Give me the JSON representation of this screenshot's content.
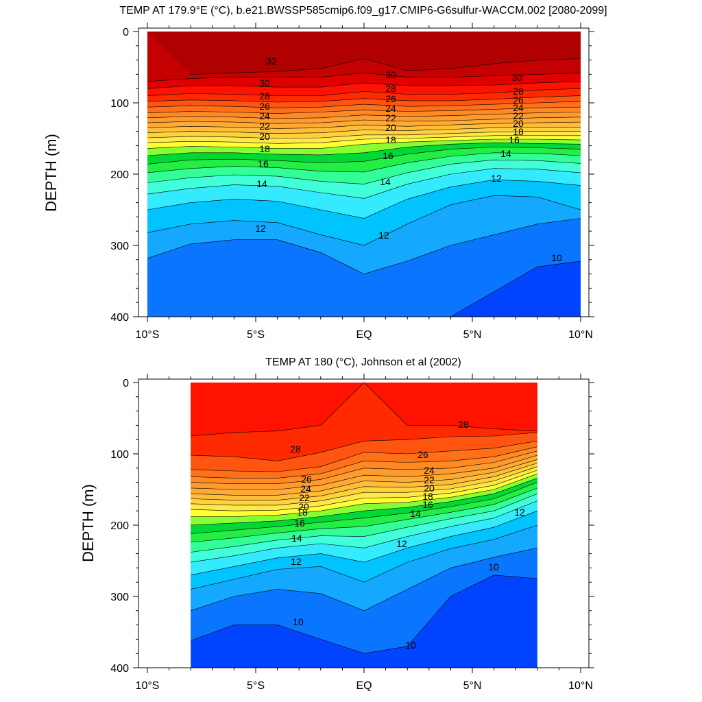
{
  "chart_data": [
    {
      "type": "contour",
      "title": "TEMP AT 179.9°E (°C), b.e21.BWSSP585cmip6.f09_g17.CMIP6-G6sulfur-WACCM.002 [2080-2099]",
      "ylabel": "DEPTH (m)",
      "xlabel": "",
      "xlim": [
        -10,
        10
      ],
      "ylim": [
        400,
        0
      ],
      "x_ticks": [
        -10,
        -5,
        0,
        5,
        10
      ],
      "x_tick_labels": [
        "10°S",
        "5°S",
        "EQ",
        "5°N",
        "10°N"
      ],
      "y_ticks": [
        0,
        100,
        200,
        300,
        400
      ],
      "y_tick_labels": [
        "0",
        "100",
        "200",
        "300",
        "400"
      ],
      "contour_levels": [
        10,
        11,
        12,
        13,
        14,
        15,
        16,
        17,
        18,
        19,
        20,
        21,
        22,
        23,
        24,
        25,
        26,
        27,
        28,
        29,
        30,
        31,
        32
      ],
      "isotherm_depths": {
        "x": [
          -10,
          -8,
          -6,
          -4,
          -2,
          0,
          2,
          4,
          6,
          8,
          10
        ],
        "levels": [
          {
            "t": 32,
            "d": [
              null,
              60,
              58,
              56,
              52,
              38,
              55,
              52,
              45,
              40,
              38
            ]
          },
          {
            "t": 31,
            "d": [
              70,
              66,
              64,
              64,
              64,
              58,
              64,
              64,
              62,
              60,
              58
            ]
          },
          {
            "t": 30,
            "d": [
              80,
              76,
              76,
              78,
              78,
              72,
              76,
              76,
              75,
              72,
              70
            ]
          },
          {
            "t": 29,
            "d": [
              90,
              87,
              88,
              90,
              90,
              84,
              88,
              88,
              86,
              82,
              80
            ]
          },
          {
            "t": 28,
            "d": [
              98,
              96,
              97,
              99,
              98,
              94,
              97,
              97,
              95,
              92,
              90
            ]
          },
          {
            "t": 27,
            "d": [
              106,
              104,
              105,
              107,
              106,
              102,
              105,
              104,
              102,
              100,
              98
            ]
          },
          {
            "t": 26,
            "d": [
              114,
              112,
              113,
              115,
              113,
              110,
              112,
              111,
              109,
              107,
              106
            ]
          },
          {
            "t": 25,
            "d": [
              121,
              119,
              120,
              122,
              121,
              117,
              119,
              118,
              116,
              114,
              113
            ]
          },
          {
            "t": 24,
            "d": [
              128,
              126,
              127,
              129,
              128,
              124,
              126,
              125,
              123,
              121,
              120
            ]
          },
          {
            "t": 23,
            "d": [
              135,
              133,
              134,
              136,
              135,
              131,
              133,
              131,
              129,
              128,
              127
            ]
          },
          {
            "t": 22,
            "d": [
              142,
              140,
              141,
              143,
              142,
              138,
              139,
              137,
              135,
              134,
              134
            ]
          },
          {
            "t": 21,
            "d": [
              149,
              147,
              148,
              150,
              149,
              145,
              145,
              143,
              141,
              140,
              140
            ]
          },
          {
            "t": 20,
            "d": [
              156,
              154,
              155,
              157,
              156,
              151,
              150,
              148,
              146,
              146,
              146
            ]
          },
          {
            "t": 19,
            "d": [
              164,
              161,
              162,
              164,
              164,
              158,
              155,
              153,
              151,
              151,
              152
            ]
          },
          {
            "t": 18,
            "d": [
              174,
              170,
              170,
              172,
              173,
              170,
              162,
              158,
              156,
              157,
              158
            ]
          },
          {
            "t": 17,
            "d": [
              186,
              180,
              179,
              181,
              184,
              182,
              172,
              165,
              162,
              163,
              165
            ]
          },
          {
            "t": 16,
            "d": [
              198,
              192,
              189,
              191,
              196,
              197,
              184,
              175,
              170,
              171,
              174
            ]
          },
          {
            "t": 15,
            "d": [
              212,
              205,
              201,
              203,
              210,
              214,
              198,
              186,
              180,
              181,
              185
            ]
          },
          {
            "t": 14,
            "d": [
              228,
              220,
              215,
              217,
              226,
              234,
              214,
              200,
              192,
              193,
              198
            ]
          },
          {
            "t": 13,
            "d": [
              250,
              240,
              235,
              238,
              250,
              262,
              235,
              218,
              208,
              210,
              216
            ]
          },
          {
            "t": 12,
            "d": [
              282,
              270,
              265,
              268,
              285,
              300,
              270,
              243,
              230,
              232,
              250
            ]
          },
          {
            "t": 11,
            "d": [
              318,
              298,
              292,
              292,
              310,
              340,
              322,
              300,
              285,
              270,
              262
            ]
          },
          {
            "t": 10,
            "d": [
              null,
              null,
              null,
              null,
              null,
              null,
              null,
              400,
              365,
              330,
              322
            ]
          }
        ]
      },
      "contour_labels": [
        "32",
        "30",
        "28",
        "26",
        "24",
        "22",
        "20",
        "18",
        "16",
        "14",
        "12",
        "30",
        "28",
        "26",
        "24",
        "22",
        "20",
        "18",
        "16",
        "14",
        "12",
        "30",
        "28",
        "26",
        "24",
        "22",
        "20",
        "18",
        "16",
        "14",
        "12",
        "10"
      ]
    },
    {
      "type": "contour",
      "title": "TEMP AT 180 (°C), Johnson et al (2002)",
      "ylabel": "DEPTH (m)",
      "xlabel": "",
      "xlim": [
        -10,
        10
      ],
      "ylim": [
        400,
        0
      ],
      "data_xlim": [
        -8,
        8
      ],
      "x_ticks": [
        -10,
        -5,
        0,
        5,
        10
      ],
      "x_tick_labels": [
        "10°S",
        "5°S",
        "EQ",
        "5°N",
        "10°N"
      ],
      "y_ticks": [
        0,
        100,
        200,
        300,
        400
      ],
      "y_tick_labels": [
        "0",
        "100",
        "200",
        "300",
        "400"
      ],
      "contour_levels": [
        10,
        11,
        12,
        13,
        14,
        15,
        16,
        17,
        18,
        19,
        20,
        21,
        22,
        23,
        24,
        25,
        26,
        27,
        28,
        29
      ],
      "isotherm_depths": {
        "x": [
          -8,
          -6,
          -4,
          -2,
          0,
          2,
          4,
          6,
          8
        ],
        "levels": [
          {
            "t": 29,
            "d": [
              75,
              70,
              68,
              60,
              0,
              60,
              60,
              65,
              68
            ]
          },
          {
            "t": 28,
            "d": [
              102,
              104,
              110,
              98,
              82,
              80,
              76,
              75,
              70
            ]
          },
          {
            "t": 27,
            "d": [
              122,
              124,
              125,
              118,
              98,
              100,
              96,
              92,
              82
            ]
          },
          {
            "t": 26,
            "d": [
              132,
              134,
              134,
              128,
              110,
              112,
              110,
              104,
              90
            ]
          },
          {
            "t": 25,
            "d": [
              140,
              142,
              142,
              136,
              120,
              122,
              120,
              112,
              96
            ]
          },
          {
            "t": 24,
            "d": [
              148,
              150,
              150,
              144,
              130,
              132,
              128,
              120,
              102
            ]
          },
          {
            "t": 23,
            "d": [
              156,
              158,
              158,
              152,
              138,
              140,
              136,
              126,
              108
            ]
          },
          {
            "t": 22,
            "d": [
              163,
              165,
              165,
              159,
              146,
              147,
              143,
              132,
              113
            ]
          },
          {
            "t": 21,
            "d": [
              170,
              172,
              172,
              166,
              154,
              154,
              149,
              138,
              118
            ]
          },
          {
            "t": 20,
            "d": [
              178,
              180,
              179,
              173,
              162,
              161,
              155,
              144,
              123
            ]
          },
          {
            "t": 19,
            "d": [
              188,
              188,
              186,
              180,
              170,
              168,
              161,
              150,
              128
            ]
          },
          {
            "t": 18,
            "d": [
              200,
              197,
              194,
              188,
              180,
              175,
              167,
              156,
              134
            ]
          },
          {
            "t": 17,
            "d": [
              212,
              207,
              202,
              196,
              190,
              183,
              174,
              163,
              140
            ]
          },
          {
            "t": 16,
            "d": [
              224,
              218,
              211,
              205,
              202,
              192,
              182,
              171,
              148
            ]
          },
          {
            "t": 15,
            "d": [
              238,
              230,
              221,
              215,
              216,
              203,
              191,
              180,
              156
            ]
          },
          {
            "t": 14,
            "d": [
              252,
              243,
              232,
              226,
              232,
              216,
              202,
              190,
              166
            ]
          },
          {
            "t": 13,
            "d": [
              270,
              258,
              246,
              240,
              252,
              232,
              216,
              203,
              180
            ]
          },
          {
            "t": 12,
            "d": [
              290,
              276,
              262,
              258,
              280,
              252,
              233,
              220,
              200
            ]
          },
          {
            "t": 11,
            "d": [
              320,
              300,
              290,
              296,
              320,
              290,
              260,
              245,
              232
            ]
          },
          {
            "t": 10,
            "d": [
              362,
              340,
              340,
              360,
              380,
              370,
              300,
              270,
              275
            ]
          }
        ]
      },
      "contour_labels": [
        "28",
        "28",
        "26",
        "24",
        "22",
        "20",
        "18",
        "16",
        "14",
        "12",
        "10",
        "26",
        "24",
        "22",
        "20",
        "18",
        "16",
        "14",
        "12",
        "12",
        "10",
        "10"
      ]
    }
  ]
}
